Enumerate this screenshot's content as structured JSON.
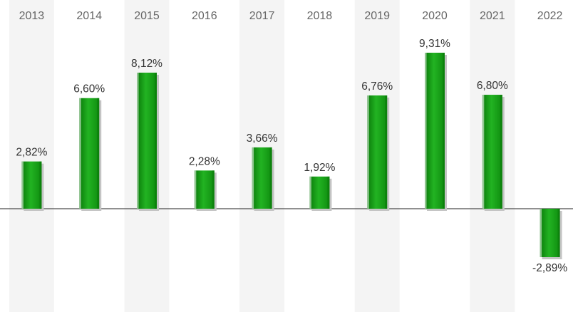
{
  "chart_data": {
    "type": "bar",
    "categories": [
      "2013",
      "2014",
      "2015",
      "2016",
      "2017",
      "2018",
      "2019",
      "2020",
      "2021",
      "2022"
    ],
    "values": [
      2.82,
      6.6,
      8.12,
      2.28,
      3.66,
      1.92,
      6.76,
      9.31,
      6.8,
      -2.89
    ],
    "data_labels": [
      "2,82%",
      "6,60%",
      "8,12%",
      "2,28%",
      "3,66%",
      "1,92%",
      "6,76%",
      "9,31%",
      "6,80%",
      "-2,89%"
    ],
    "title": "",
    "xlabel": "",
    "ylabel": "",
    "ylim": [
      -6,
      12.5
    ],
    "grid": false,
    "legend": "none",
    "colors": {
      "bar": "#1aa51a",
      "bar_light": "#4fd04f",
      "bar_dark": "#0a7a0a",
      "bar_shadow": "#c4c4c4",
      "band": "#f4f4f4",
      "zero_line": "#222222"
    }
  }
}
